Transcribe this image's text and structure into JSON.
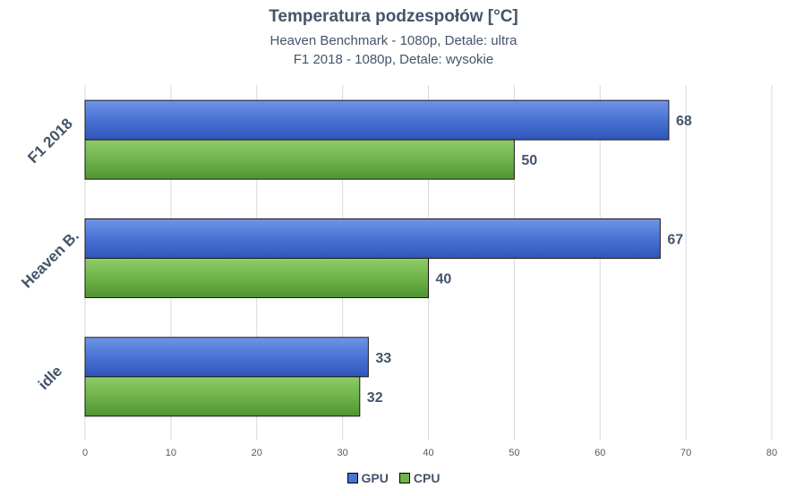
{
  "chart_data": {
    "type": "bar",
    "orientation": "horizontal",
    "title": "Temperatura podzespołów [°C]",
    "subtitles": [
      "Heaven Benchmark - 1080p, Detale: ultra",
      "F1 2018 - 1080p, Detale: wysokie"
    ],
    "categories": [
      "F1 2018",
      "Heaven B.",
      "idle"
    ],
    "series": [
      {
        "name": "GPU",
        "values": [
          68,
          67,
          33
        ],
        "color": "#4a72d4"
      },
      {
        "name": "CPU",
        "values": [
          50,
          40,
          32
        ],
        "color": "#6fb34a"
      }
    ],
    "xlim": [
      0,
      80
    ],
    "xticks": [
      0,
      10,
      20,
      30,
      40,
      50,
      60,
      70,
      80
    ],
    "grid": true,
    "legend_position": "bottom"
  }
}
